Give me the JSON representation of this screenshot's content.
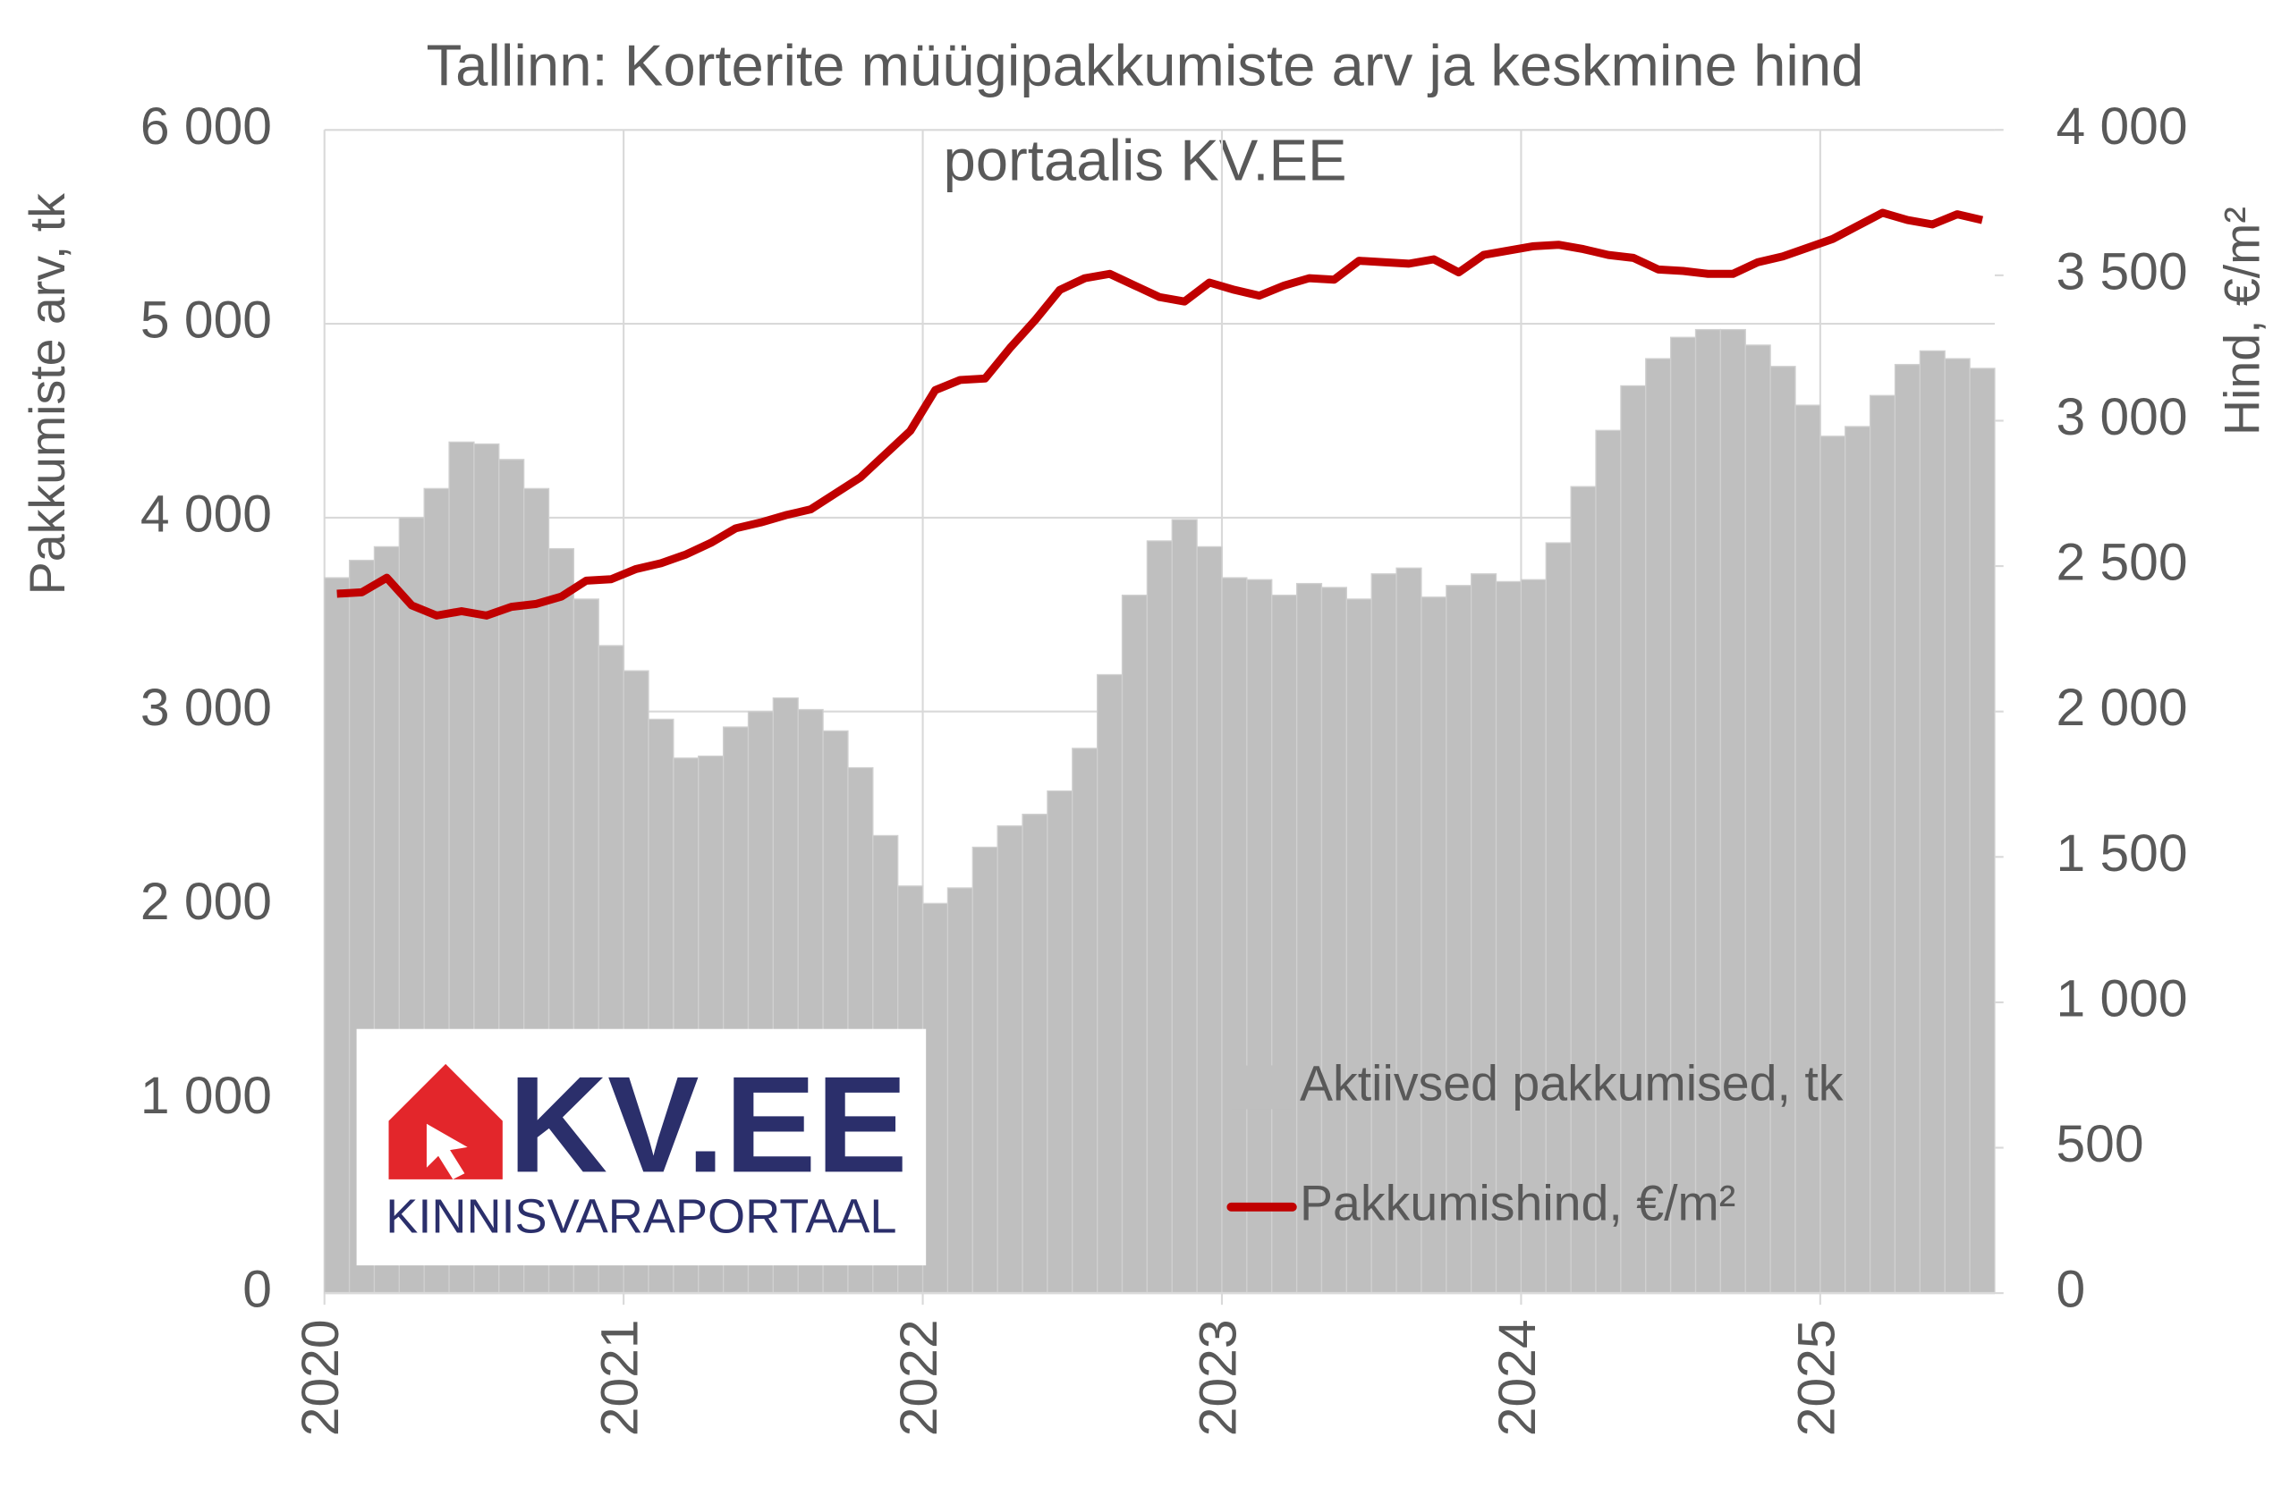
{
  "chart_data": {
    "type": "bar-line",
    "title": [
      "Tallinn: Korterite müügipakkumiste arv ja keskmine hind",
      "portaalis KV.EE"
    ],
    "y_label": "Pakkumiste arv, tk",
    "y2_label": "Hind, €/m²",
    "logo": {
      "name": "KV.EE",
      "tagline": "KINNISVARAPORTAAL"
    },
    "categories": [
      "2020",
      null,
      null,
      null,
      null,
      null,
      null,
      null,
      null,
      null,
      null,
      null,
      "2021",
      null,
      null,
      null,
      null,
      null,
      null,
      null,
      null,
      null,
      null,
      null,
      "2022",
      null,
      null,
      null,
      null,
      null,
      null,
      null,
      null,
      null,
      null,
      null,
      "2023",
      null,
      null,
      null,
      null,
      null,
      null,
      null,
      null,
      null,
      null,
      null,
      "2024",
      null,
      null,
      null,
      null,
      null,
      null,
      null,
      null,
      null,
      null,
      null,
      "2025",
      null,
      null,
      null,
      null,
      null,
      null
    ],
    "series": [
      {
        "name": "Aktiivsed pakkumised, tk",
        "type": "bar",
        "color": "#bfbfbf",
        "values": [
          3690,
          3780,
          3850,
          4000,
          4150,
          4390,
          4380,
          4300,
          4150,
          3840,
          3580,
          3340,
          3210,
          2960,
          2760,
          2770,
          2920,
          3000,
          3070,
          3010,
          2900,
          2710,
          2360,
          2100,
          2010,
          2090,
          2300,
          2410,
          2470,
          2590,
          2810,
          3190,
          3600,
          3880,
          3990,
          3850,
          3690,
          3680,
          3600,
          3660,
          3640,
          3580,
          3710,
          3740,
          3590,
          3650,
          3710,
          3670,
          3680,
          3870,
          4160,
          4450,
          4680,
          4820,
          4930,
          4970,
          4970,
          4890,
          4780,
          4580,
          4420,
          4470,
          4630,
          4790,
          4860,
          4820,
          4770
        ]
      },
      {
        "name": "Pakkumishind, €/m²",
        "type": "line",
        "axis": "y2",
        "color": "#c00000",
        "values": [
          2405,
          2410,
          2460,
          2365,
          2330,
          2345,
          2330,
          2360,
          2370,
          2395,
          2450,
          2455,
          2490,
          2510,
          2540,
          2580,
          2630,
          2650,
          2675,
          2695,
          2750,
          2805,
          2885,
          2965,
          3105,
          3140,
          3145,
          3250,
          3345,
          3450,
          3490,
          3505,
          3465,
          3425,
          3410,
          3475,
          3450,
          3430,
          3465,
          3490,
          3485,
          3550,
          3545,
          3540,
          3555,
          3510,
          3570,
          3585,
          3600,
          3605,
          3590,
          3570,
          3560,
          3520,
          3515,
          3505,
          3505,
          3545,
          3565,
          3595,
          3625,
          3670,
          3715,
          3690,
          3675,
          3710,
          3690
        ]
      }
    ],
    "ylim": [
      0,
      6000
    ],
    "yticks": [
      0,
      {
        "value": 1000,
        "label": "1 000"
      },
      {
        "value": 2000,
        "label": "2 000"
      },
      {
        "value": 3000,
        "label": "3 000"
      },
      {
        "value": 4000,
        "label": "4 000"
      },
      {
        "value": 5000,
        "label": "5 000"
      },
      {
        "value": 6000,
        "label": "6 000"
      }
    ],
    "y2lim": [
      0,
      4000
    ],
    "y2ticks": [
      0,
      500,
      {
        "value": 1000,
        "label": "1 000"
      },
      {
        "value": 1500,
        "label": "1 500"
      },
      {
        "value": 2000,
        "label": "2 000"
      },
      {
        "value": 2500,
        "label": "2 500"
      },
      {
        "value": 3000,
        "label": "3 000"
      },
      {
        "value": 3500,
        "label": "3 500"
      },
      {
        "value": 4000,
        "label": "4 000"
      }
    ],
    "grid": true,
    "legend": "lower right"
  }
}
